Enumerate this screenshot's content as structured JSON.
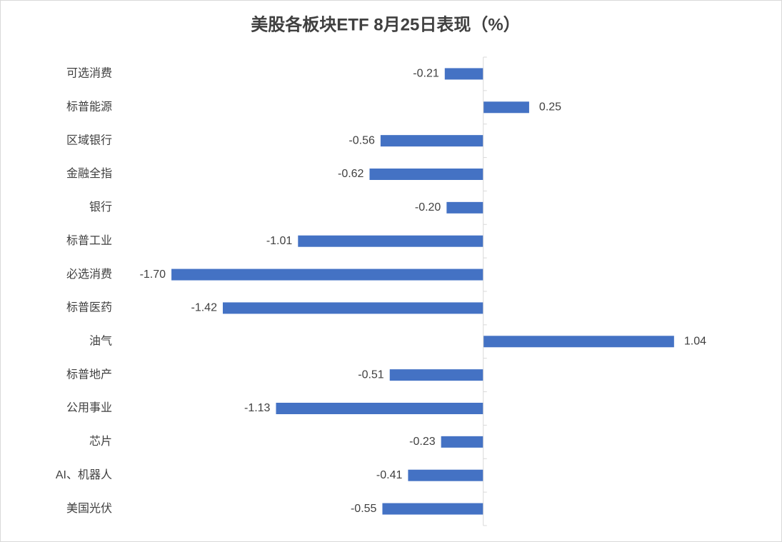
{
  "chart_data": {
    "type": "bar",
    "orientation": "horizontal",
    "title": "美股各板块ETF  8月25日表现（%）",
    "categories": [
      "可选消费",
      "标普能源",
      "区域银行",
      "金融全指",
      "银行",
      "标普工业",
      "必选消费",
      "标普医药",
      "油气",
      "标普地产",
      "公用事业",
      "芯片",
      "AI、机器人",
      "美国光伏"
    ],
    "values": [
      -0.21,
      0.25,
      -0.56,
      -0.62,
      -0.2,
      -1.01,
      -1.7,
      -1.42,
      1.04,
      -0.51,
      -1.13,
      -0.23,
      -0.41,
      -0.55
    ],
    "value_labels": [
      "-0.21",
      "0.25",
      "-0.56",
      "-0.62",
      "-0.20",
      "-1.01",
      "-1.70",
      "-1.42",
      "1.04",
      "-0.51",
      "-1.13",
      "-0.23",
      "-0.41",
      "-0.55"
    ],
    "color": "#4472c4",
    "xlim": [
      -2,
      1.5
    ]
  }
}
